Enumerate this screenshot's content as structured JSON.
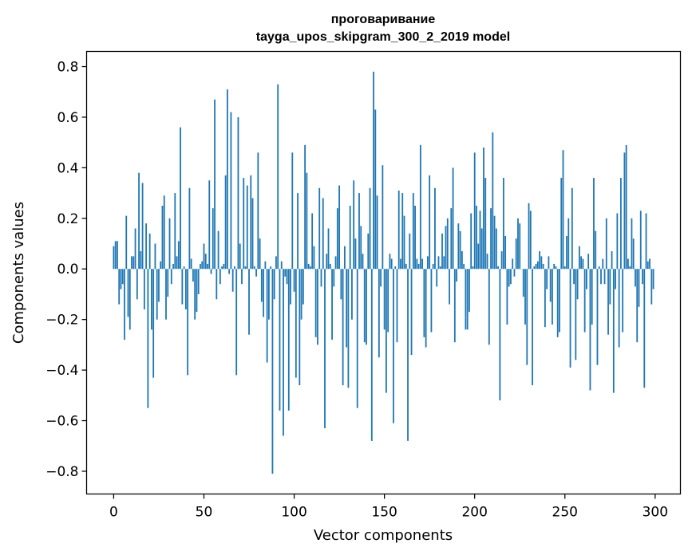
{
  "chart_data": {
    "type": "bar",
    "title_line1": "проговаривание",
    "title_line2": "tayga_upos_skipgram_300_2_2019 model",
    "xlabel": "Vector components",
    "ylabel": "Components values",
    "xlim": [
      -15,
      314
    ],
    "ylim": [
      -0.89,
      0.86
    ],
    "xticks": [
      0,
      50,
      100,
      150,
      200,
      250,
      300
    ],
    "xtick_labels": [
      "0",
      "50",
      "100",
      "150",
      "200",
      "250",
      "300"
    ],
    "yticks": [
      -0.8,
      -0.6,
      -0.4,
      -0.2,
      0.0,
      0.2,
      0.4,
      0.6,
      0.8
    ],
    "ytick_labels": [
      "−0.8",
      "−0.6",
      "−0.4",
      "−0.2",
      "0.0",
      "0.2",
      "0.4",
      "0.6",
      "0.8"
    ],
    "bar_color": "#1f77b4",
    "grid": false,
    "values": [
      0.09,
      0.11,
      0.11,
      -0.14,
      -0.08,
      -0.06,
      -0.28,
      0.21,
      -0.19,
      -0.24,
      0.05,
      0.05,
      0.16,
      -0.12,
      0.38,
      0.07,
      0.34,
      -0.16,
      0.18,
      -0.55,
      0.14,
      -0.24,
      -0.43,
      0.1,
      -0.2,
      -0.13,
      0.03,
      0.25,
      0.29,
      -0.2,
      -0.11,
      0.2,
      -0.06,
      0.02,
      0.3,
      0.05,
      0.11,
      0.56,
      -0.14,
      0.01,
      -0.16,
      -0.42,
      0.32,
      0.04,
      -0.05,
      -0.2,
      -0.17,
      -0.1,
      0.02,
      0.03,
      0.1,
      0.06,
      0.02,
      0.35,
      -0.02,
      0.24,
      0.67,
      -0.12,
      0.15,
      -0.06,
      0.01,
      0.02,
      0.37,
      0.71,
      -0.02,
      0.62,
      -0.09,
      0.01,
      -0.42,
      0.6,
      0.1,
      -0.06,
      0.36,
      0.01,
      0.33,
      -0.26,
      0.37,
      0.28,
      0.01,
      -0.03,
      0.46,
      0.12,
      -0.13,
      -0.19,
      0.03,
      -0.37,
      -0.2,
      0.01,
      -0.81,
      -0.12,
      0.05,
      0.73,
      -0.56,
      0.03,
      -0.66,
      -0.03,
      -0.06,
      -0.56,
      -0.14,
      0.46,
      -0.09,
      -0.43,
      0.3,
      -0.46,
      -0.2,
      -0.14,
      0.49,
      0.38,
      0.02,
      0.01,
      0.22,
      0.09,
      -0.27,
      -0.3,
      0.32,
      -0.07,
      0.28,
      -0.63,
      0.06,
      0.16,
      0.02,
      -0.28,
      -0.07,
      0.05,
      0.24,
      0.33,
      -0.12,
      -0.46,
      0.09,
      -0.31,
      -0.47,
      0.25,
      -0.2,
      0.35,
      0.12,
      -0.55,
      0.3,
      0.17,
      0.06,
      -0.29,
      -0.3,
      0.14,
      0.32,
      -0.68,
      0.78,
      0.63,
      0.29,
      -0.35,
      -0.07,
      0.41,
      -0.24,
      -0.49,
      -0.25,
      0.06,
      0.04,
      -0.61,
      0.01,
      -0.29,
      0.31,
      0.04,
      0.3,
      0.21,
      0.02,
      -0.68,
      0.14,
      -0.34,
      0.3,
      0.25,
      0.04,
      0.02,
      0.49,
      0.04,
      -0.27,
      -0.31,
      0.05,
      0.37,
      -0.25,
      0.02,
      0.32,
      -0.07,
      0.05,
      0.01,
      0.14,
      0.05,
      0.17,
      0.2,
      -0.14,
      0.24,
      0.4,
      -0.29,
      -0.05,
      0.18,
      0.15,
      0.07,
      0.02,
      -0.24,
      -0.24,
      -0.17,
      0.22,
      0.01,
      0.46,
      0.25,
      0.1,
      0.23,
      0.16,
      0.48,
      0.36,
      0.06,
      -0.3,
      0.24,
      0.54,
      0.21,
      0.16,
      0.01,
      -0.52,
      0.07,
      0.36,
      0.13,
      -0.22,
      -0.07,
      -0.06,
      0.04,
      -0.03,
      0.12,
      0.2,
      0.18,
      0.0,
      -0.11,
      -0.22,
      -0.38,
      0.26,
      0.23,
      -0.46,
      0.01,
      0.02,
      0.03,
      0.07,
      0.05,
      0.02,
      -0.23,
      -0.08,
      0.05,
      -0.13,
      -0.22,
      0.02,
      0.01,
      -0.27,
      -0.25,
      0.36,
      0.47,
      0.01,
      0.13,
      0.2,
      -0.39,
      0.32,
      -0.06,
      -0.36,
      -0.12,
      0.09,
      0.05,
      0.04,
      -0.25,
      -0.08,
      0.06,
      -0.48,
      -0.22,
      0.36,
      0.15,
      -0.38,
      0.01,
      -0.06,
      0.04,
      -0.06,
      0.2,
      -0.26,
      -0.14,
      0.07,
      -0.49,
      -0.08,
      0.22,
      -0.31,
      0.36,
      -0.25,
      0.46,
      0.49,
      0.04,
      0.01,
      0.2,
      0.12,
      -0.07,
      -0.29,
      -0.15,
      0.23,
      -0.06,
      -0.47,
      0.22,
      0.03,
      0.04,
      -0.14,
      -0.08
    ]
  }
}
